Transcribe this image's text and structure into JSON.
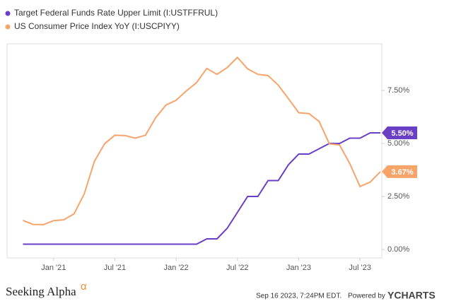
{
  "chart_data": {
    "type": "line",
    "x": [
      "2020-09",
      "2020-10",
      "2020-11",
      "2020-12",
      "2021-01",
      "2021-02",
      "2021-03",
      "2021-04",
      "2021-05",
      "2021-06",
      "2021-07",
      "2021-08",
      "2021-09",
      "2021-10",
      "2021-11",
      "2021-12",
      "2022-01",
      "2022-02",
      "2022-03",
      "2022-04",
      "2022-05",
      "2022-06",
      "2022-07",
      "2022-08",
      "2022-09",
      "2022-10",
      "2022-11",
      "2022-12",
      "2023-01",
      "2023-02",
      "2023-03",
      "2023-04",
      "2023-05",
      "2023-06",
      "2023-07",
      "2023-08"
    ],
    "series": [
      {
        "name": "Target Federal Funds Rate Upper Limit (I:USTFFRUL)",
        "color": "#6a3fc6",
        "values": [
          0.25,
          0.25,
          0.25,
          0.25,
          0.25,
          0.25,
          0.25,
          0.25,
          0.25,
          0.25,
          0.25,
          0.25,
          0.25,
          0.25,
          0.25,
          0.25,
          0.25,
          0.25,
          0.5,
          0.5,
          1.0,
          1.75,
          2.5,
          2.5,
          3.25,
          3.25,
          4.0,
          4.5,
          4.5,
          4.75,
          5.0,
          5.0,
          5.25,
          5.25,
          5.5,
          5.5
        ],
        "value_labels": [
          null,
          null,
          null,
          null,
          null,
          null,
          null,
          null,
          null,
          null,
          null,
          null,
          null,
          null,
          null,
          null,
          null,
          null,
          null,
          null,
          null,
          null,
          null,
          null,
          null,
          null,
          null,
          null,
          null,
          null,
          null,
          null,
          null,
          null,
          null,
          "5.50%"
        ]
      },
      {
        "name": "US Consumer Price Index YoY (I:USCPIYY)",
        "color": "#f7a46b",
        "values": [
          1.37,
          1.18,
          1.17,
          1.36,
          1.4,
          1.68,
          2.62,
          4.16,
          4.99,
          5.39,
          5.37,
          5.25,
          5.39,
          6.22,
          6.81,
          7.04,
          7.48,
          7.87,
          8.54,
          8.26,
          8.58,
          9.06,
          8.52,
          8.26,
          8.2,
          7.75,
          7.11,
          6.45,
          6.41,
          6.04,
          4.98,
          4.93,
          4.05,
          2.97,
          3.18,
          3.67
        ],
        "value_labels": [
          null,
          null,
          null,
          null,
          null,
          null,
          null,
          null,
          null,
          null,
          null,
          null,
          null,
          null,
          null,
          null,
          null,
          null,
          null,
          null,
          null,
          null,
          null,
          null,
          null,
          null,
          null,
          null,
          null,
          null,
          null,
          null,
          null,
          null,
          null,
          "3.67%"
        ]
      }
    ],
    "xlim": [
      "2020-09",
      "2023-08"
    ],
    "xticks": [
      {
        "value": "2021-01",
        "label": "Jan '21"
      },
      {
        "value": "2021-07",
        "label": "Jul '21"
      },
      {
        "value": "2022-01",
        "label": "Jan '22"
      },
      {
        "value": "2022-07",
        "label": "Jul '22"
      },
      {
        "value": "2023-01",
        "label": "Jan '23"
      },
      {
        "value": "2023-07",
        "label": "Jul '23"
      }
    ],
    "ylim": [
      -0.4,
      9.7
    ],
    "yticks": [
      {
        "value": 0,
        "label": "0.00%"
      },
      {
        "value": 2.5,
        "label": "2.50%"
      },
      {
        "value": 5,
        "label": "5.00%"
      },
      {
        "value": 7.5,
        "label": "7.50%"
      }
    ],
    "grid": false,
    "footer": {
      "brand": "Seeking Alpha",
      "brand_mark": "α",
      "timestamp": "Sep 16 2023, 7:24PM EDT.",
      "powered": "Powered by",
      "provider": "YCHARTS"
    }
  }
}
